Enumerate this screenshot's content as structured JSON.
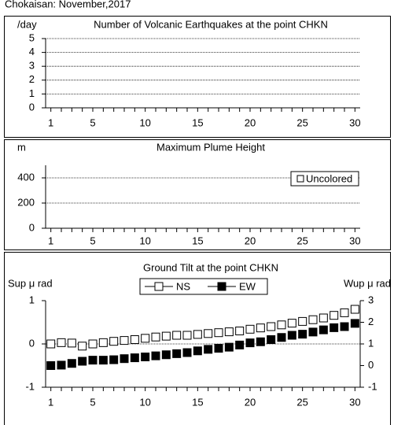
{
  "header": {
    "title": "Chokaisan: November,2017"
  },
  "chart_data": [
    {
      "type": "bar",
      "title": "Number of Volcanic Earthquakes at the point CHKN",
      "ylabel": "/day",
      "x": [
        1,
        2,
        3,
        4,
        5,
        6,
        7,
        8,
        9,
        10,
        11,
        12,
        13,
        14,
        15,
        16,
        17,
        18,
        19,
        20,
        21,
        22,
        23,
        24,
        25,
        26,
        27,
        28,
        29,
        30
      ],
      "series": [
        {
          "values": [
            0,
            0,
            0,
            0,
            0,
            0,
            0,
            0,
            0,
            0,
            0,
            0,
            0,
            0,
            0,
            0,
            0,
            0,
            0,
            0,
            0,
            0,
            0,
            0,
            0,
            0,
            0,
            0,
            0,
            0
          ],
          "color": "#808080"
        }
      ],
      "xlim": [
        0.5,
        30.5
      ],
      "xticks": [
        1,
        5,
        10,
        15,
        20,
        25,
        30
      ],
      "ylim": [
        0,
        5
      ],
      "yticks": [
        0,
        1,
        2,
        3,
        4,
        5
      ],
      "grid": true
    },
    {
      "type": "bar",
      "title": "Maximum Plume Height",
      "ylabel": "m",
      "x": [
        1,
        2,
        3,
        4,
        5,
        6,
        7,
        8,
        9,
        10,
        11,
        12,
        13,
        14,
        15,
        16,
        17,
        18,
        19,
        20,
        21,
        22,
        23,
        24,
        25,
        26,
        27,
        28,
        29,
        30
      ],
      "series": [
        {
          "name": "Uncolored",
          "color": "#ffffff",
          "values": [
            null,
            null,
            null,
            null,
            null,
            null,
            null,
            null,
            null,
            null,
            null,
            null,
            null,
            null,
            null,
            null,
            null,
            null,
            null,
            null,
            null,
            null,
            null,
            null,
            null,
            null,
            null,
            null,
            null,
            null
          ]
        }
      ],
      "xlim": [
        0.5,
        30.5
      ],
      "xticks": [
        1,
        5,
        10,
        15,
        20,
        25,
        30
      ],
      "ylim": [
        0,
        500
      ],
      "yticks": [
        0,
        200,
        400
      ],
      "grid": true,
      "legend": "top-right"
    },
    {
      "type": "scatter",
      "title": "Ground Tilt at the point CHKN",
      "ylabel": "Sup μ rad",
      "y2label": "Wup μ rad",
      "x": [
        1,
        2,
        3,
        4,
        5,
        6,
        7,
        8,
        9,
        10,
        11,
        12,
        13,
        14,
        15,
        16,
        17,
        18,
        19,
        20,
        21,
        22,
        23,
        24,
        25,
        26,
        27,
        28,
        29,
        30
      ],
      "series": [
        {
          "name": "NS",
          "color": "#ffffff",
          "values": [
            0.0,
            0.03,
            0.02,
            -0.05,
            0.0,
            0.03,
            0.06,
            0.08,
            0.1,
            0.13,
            0.16,
            0.18,
            0.2,
            0.2,
            0.22,
            0.24,
            0.26,
            0.28,
            0.3,
            0.34,
            0.37,
            0.4,
            0.44,
            0.48,
            0.52,
            0.56,
            0.6,
            0.66,
            0.72,
            0.8
          ]
        },
        {
          "name": "EW",
          "color": "#000000",
          "axis": "y2",
          "values": [
            0.0,
            0.02,
            0.1,
            0.2,
            0.25,
            0.25,
            0.27,
            0.32,
            0.36,
            0.4,
            0.45,
            0.5,
            0.55,
            0.6,
            0.68,
            0.75,
            0.8,
            0.85,
            0.95,
            1.05,
            1.1,
            1.2,
            1.3,
            1.4,
            1.45,
            1.55,
            1.65,
            1.75,
            1.8,
            1.95
          ]
        }
      ],
      "xlim": [
        0.5,
        30.5
      ],
      "xticks": [
        1,
        5,
        10,
        15,
        20,
        25,
        30
      ],
      "ylim": [
        -1,
        1
      ],
      "yticks": [
        -1,
        0,
        1
      ],
      "y2lim": [
        -1,
        3
      ],
      "y2ticks": [
        -1,
        0,
        1,
        2,
        3
      ],
      "grid": false,
      "legend": "top-center"
    }
  ]
}
